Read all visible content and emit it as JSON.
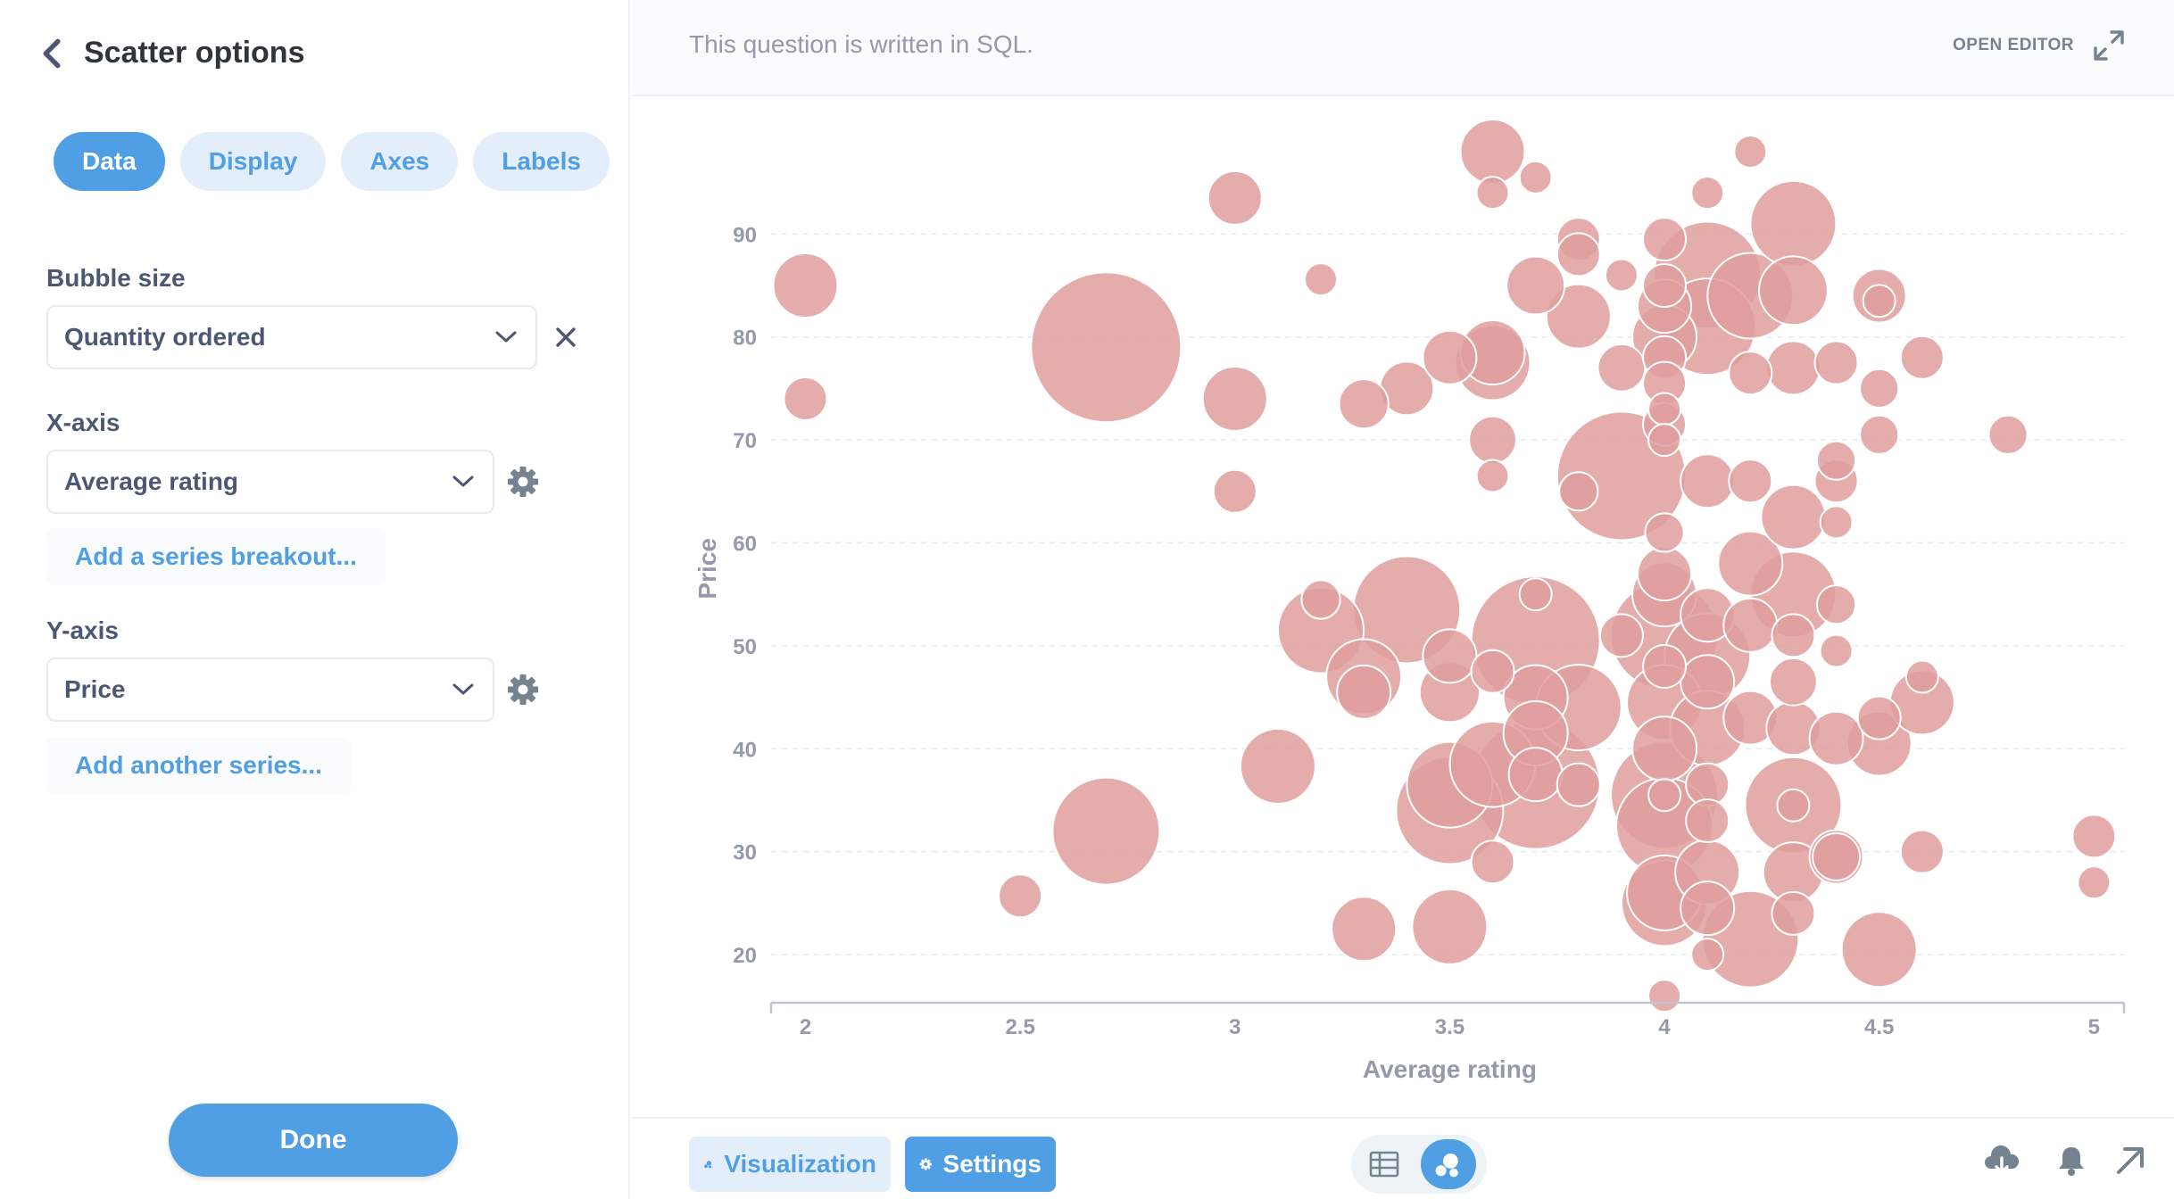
{
  "sidebar": {
    "title": "Scatter options",
    "tabs": [
      {
        "label": "Data",
        "active": true
      },
      {
        "label": "Display",
        "active": false
      },
      {
        "label": "Axes",
        "active": false
      },
      {
        "label": "Labels",
        "active": false
      }
    ],
    "bubble_size": {
      "label": "Bubble size",
      "value": "Quantity ordered"
    },
    "x_axis": {
      "label": "X-axis",
      "value": "Average rating",
      "add_link": "Add a series breakout..."
    },
    "y_axis": {
      "label": "Y-axis",
      "value": "Price",
      "add_link": "Add another series..."
    },
    "done_label": "Done"
  },
  "sql_bar": {
    "message": "This question is written in SQL.",
    "open_editor": "OPEN EDITOR"
  },
  "footer": {
    "visualization_label": "Visualization",
    "settings_label": "Settings",
    "icons": [
      "table-icon",
      "bubble-chart-icon",
      "download-icon",
      "bell-icon",
      "share-arrow-icon"
    ]
  },
  "colors": {
    "accent": "#509ee3",
    "bubble_fill": "#e19d9d",
    "bubble_stroke": "#ffffff",
    "text_dark": "#2e353b",
    "text_muted": "#949aab"
  },
  "chart_data": {
    "type": "scatter",
    "bubble": true,
    "xlabel": "Average rating",
    "ylabel": "Price",
    "xlim": [
      1.92,
      5.07
    ],
    "ylim": [
      15.5,
      98
    ],
    "x_ticks": [
      2,
      2.5,
      3,
      3.5,
      4,
      4.5,
      5
    ],
    "x_tick_labels": [
      "2",
      "2.5",
      "3",
      "3.5",
      "4",
      "4.5",
      "5"
    ],
    "y_ticks": [
      20,
      30,
      40,
      50,
      60,
      70,
      80,
      90
    ],
    "y_tick_labels": [
      "20",
      "30",
      "40",
      "50",
      "60",
      "70",
      "80",
      "90"
    ],
    "grid": "horizontal-dashed",
    "legend": "none",
    "points": [
      [
        2,
        85,
        3
      ],
      [
        2,
        74,
        2
      ],
      [
        2.5,
        25.7,
        2
      ],
      [
        2.7,
        32,
        5
      ],
      [
        2.7,
        79,
        7
      ],
      [
        3,
        93.5,
        2.5
      ],
      [
        3,
        74,
        3
      ],
      [
        3,
        65,
        2
      ],
      [
        3.1,
        38.3,
        3.5
      ],
      [
        3.2,
        85.6,
        1.5
      ],
      [
        3.2,
        54.5,
        1.8
      ],
      [
        3.2,
        51.5,
        4
      ],
      [
        3.3,
        73.5,
        2.3
      ],
      [
        3.3,
        47,
        3.5
      ],
      [
        3.3,
        45.5,
        2.5
      ],
      [
        3.3,
        22.5,
        3
      ],
      [
        3.4,
        75,
        2.5
      ],
      [
        3.4,
        53.5,
        5
      ],
      [
        3.5,
        78,
        2.5
      ],
      [
        3.5,
        49,
        2.5
      ],
      [
        3.5,
        45.5,
        2.8
      ],
      [
        3.5,
        36.5,
        4
      ],
      [
        3.5,
        34,
        5
      ],
      [
        3.5,
        22.7,
        3.5
      ],
      [
        3.6,
        98,
        3
      ],
      [
        3.6,
        94,
        1.5
      ],
      [
        3.6,
        78.5,
        3
      ],
      [
        3.6,
        77.5,
        3.5
      ],
      [
        3.6,
        70,
        2.2
      ],
      [
        3.6,
        66.5,
        1.5
      ],
      [
        3.6,
        47.5,
        2
      ],
      [
        3.6,
        38.5,
        4
      ],
      [
        3.6,
        29,
        2
      ],
      [
        3.7,
        95.5,
        1.5
      ],
      [
        3.7,
        85,
        2.7
      ],
      [
        3.7,
        55,
        1.5
      ],
      [
        3.7,
        50.5,
        6
      ],
      [
        3.7,
        45,
        3
      ],
      [
        3.7,
        41.5,
        3
      ],
      [
        3.7,
        37.5,
        2.5
      ],
      [
        3.7,
        36.5,
        6
      ],
      [
        3.8,
        89.5,
        2
      ],
      [
        3.8,
        88,
        2
      ],
      [
        3.8,
        82,
        3
      ],
      [
        3.8,
        65,
        1.8
      ],
      [
        3.8,
        44,
        4
      ],
      [
        3.8,
        36.5,
        2
      ],
      [
        3.9,
        86,
        1.5
      ],
      [
        3.9,
        77,
        2.2
      ],
      [
        3.9,
        66.5,
        6
      ],
      [
        3.9,
        51,
        2
      ],
      [
        4,
        89.5,
        2
      ],
      [
        4,
        85,
        2
      ],
      [
        4,
        83,
        2.5
      ],
      [
        4,
        80,
        3
      ],
      [
        4,
        78,
        2
      ],
      [
        4,
        75.5,
        2
      ],
      [
        4,
        73,
        1.5
      ],
      [
        4,
        71.5,
        2
      ],
      [
        4,
        70,
        1.5
      ],
      [
        4,
        61,
        1.8
      ],
      [
        4,
        57,
        2.5
      ],
      [
        4,
        55,
        3
      ],
      [
        4,
        51,
        5
      ],
      [
        4,
        48,
        2
      ],
      [
        4,
        44.5,
        3.5
      ],
      [
        4,
        40,
        3
      ],
      [
        4,
        35.5,
        5
      ],
      [
        4,
        35.5,
        1.5
      ],
      [
        4,
        32.5,
        4.5
      ],
      [
        4,
        26,
        3.5
      ],
      [
        4,
        25,
        4
      ],
      [
        4,
        16,
        1.5
      ],
      [
        4.1,
        94,
        1.5
      ],
      [
        4.1,
        86,
        5
      ],
      [
        4.1,
        81,
        4.5
      ],
      [
        4.1,
        66,
        2.5
      ],
      [
        4.1,
        53,
        2.5
      ],
      [
        4.1,
        49,
        4
      ],
      [
        4.1,
        46.5,
        2.5
      ],
      [
        4.1,
        42,
        3.5
      ],
      [
        4.1,
        36.5,
        2
      ],
      [
        4.1,
        33,
        2
      ],
      [
        4.1,
        28,
        3
      ],
      [
        4.1,
        24.5,
        2.5
      ],
      [
        4.1,
        20,
        1.5
      ],
      [
        4.2,
        98,
        1.5
      ],
      [
        4.2,
        84,
        4
      ],
      [
        4.2,
        76.5,
        2
      ],
      [
        4.2,
        66,
        2
      ],
      [
        4.2,
        58,
        3
      ],
      [
        4.2,
        52,
        2.5
      ],
      [
        4.2,
        43,
        2.5
      ],
      [
        4.2,
        21.5,
        4.5
      ],
      [
        4.3,
        91,
        4
      ],
      [
        4.3,
        84.5,
        3.2
      ],
      [
        4.3,
        77,
        2.5
      ],
      [
        4.3,
        62.5,
        3
      ],
      [
        4.3,
        55,
        4
      ],
      [
        4.3,
        51,
        2
      ],
      [
        4.3,
        46.5,
        2.2
      ],
      [
        4.3,
        42,
        2.5
      ],
      [
        4.3,
        34.5,
        4.5
      ],
      [
        4.3,
        34.5,
        1.5
      ],
      [
        4.3,
        28,
        2.8
      ],
      [
        4.3,
        24,
        2
      ],
      [
        4.4,
        77.5,
        2
      ],
      [
        4.4,
        68,
        1.8
      ],
      [
        4.4,
        66,
        2
      ],
      [
        4.4,
        62,
        1.5
      ],
      [
        4.4,
        54,
        1.8
      ],
      [
        4.4,
        49.5,
        1.5
      ],
      [
        4.4,
        41,
        2.5
      ],
      [
        4.4,
        29.5,
        2.2
      ],
      [
        4.4,
        29.5,
        2.5
      ],
      [
        4.5,
        84,
        2.5
      ],
      [
        4.5,
        83.5,
        1.5
      ],
      [
        4.5,
        75,
        1.8
      ],
      [
        4.5,
        70.5,
        1.8
      ],
      [
        4.5,
        43,
        2
      ],
      [
        4.5,
        40.5,
        3
      ],
      [
        4.5,
        20.5,
        3.5
      ],
      [
        4.6,
        78,
        2
      ],
      [
        4.6,
        47,
        1.5
      ],
      [
        4.6,
        44.5,
        3
      ],
      [
        4.6,
        30,
        2
      ],
      [
        4.8,
        70.5,
        1.8
      ],
      [
        5,
        31.5,
        2
      ],
      [
        5,
        27,
        1.5
      ]
    ]
  }
}
